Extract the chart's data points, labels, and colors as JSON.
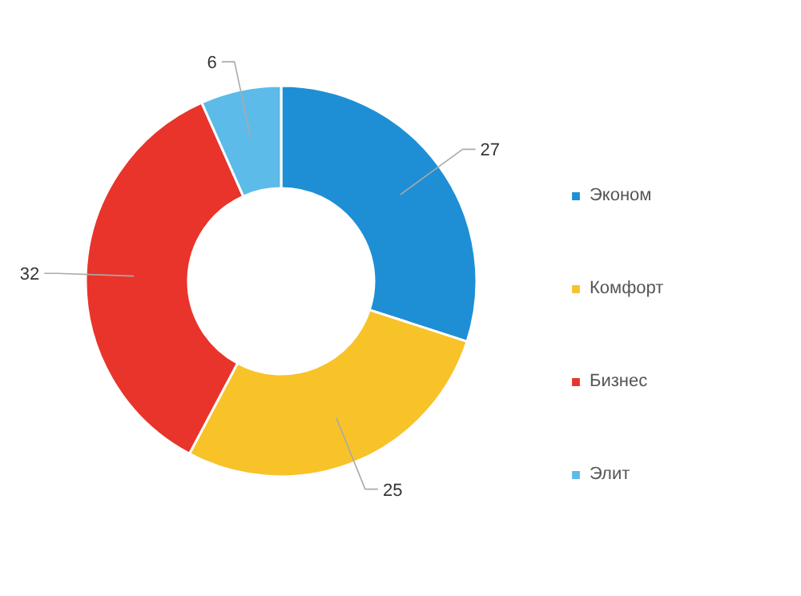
{
  "chart_data": {
    "type": "donut",
    "categories": [
      "Эконом",
      "Комфорт",
      "Бизнес",
      "Элит"
    ],
    "values": [
      27,
      25,
      32,
      6
    ],
    "colors": [
      "#1e8fd5",
      "#f8c229",
      "#e9342b",
      "#5cbbe9"
    ],
    "data_labels": true,
    "legend": "right"
  }
}
